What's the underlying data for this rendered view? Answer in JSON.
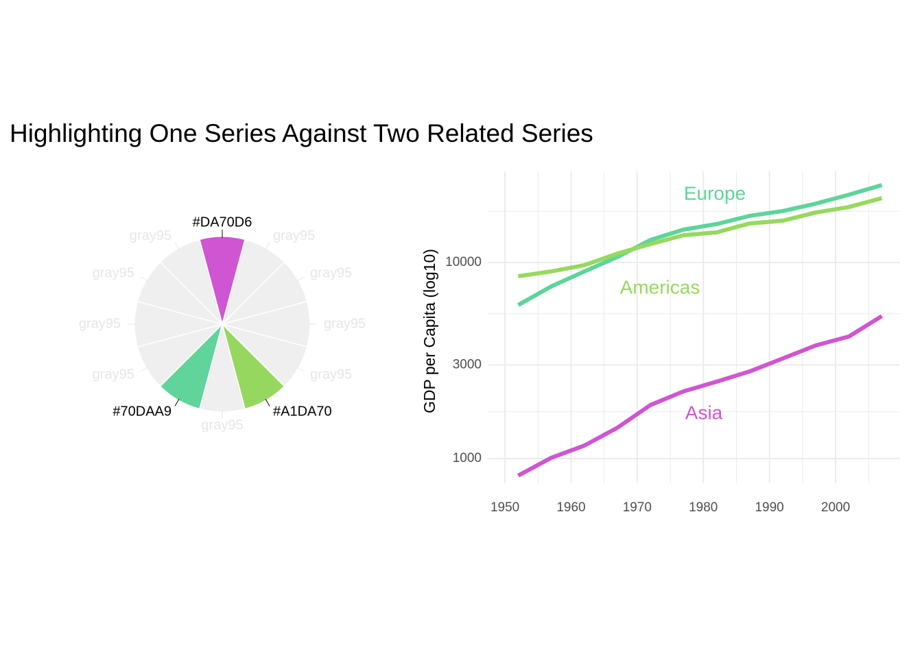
{
  "title": "Highlighting One Series Against Two Related Series",
  "chart_data": [
    {
      "type": "pie",
      "categories": [
        "#DA70D6",
        "gray95",
        "gray95",
        "gray95",
        "gray95",
        "#A1DA70",
        "gray95",
        "#70DAA9",
        "gray95",
        "gray95",
        "gray95",
        "gray95"
      ],
      "values": [
        1,
        1,
        1,
        1,
        1,
        1,
        1,
        1,
        1,
        1,
        1,
        1
      ],
      "colors": [
        "#CF55D2",
        "#EFEFEF",
        "#EFEFEF",
        "#EFEFEF",
        "#EFEFEF",
        "#96D85F",
        "#EFEFEF",
        "#60D49B",
        "#EFEFEF",
        "#EFEFEF",
        "#EFEFEF",
        "#EFEFEF"
      ],
      "label_colors": [
        "#000000",
        "#E6E6E6",
        "#E6E6E6",
        "#E6E6E6",
        "#E6E6E6",
        "#000000",
        "#E6E6E6",
        "#000000",
        "#E6E6E6",
        "#E6E6E6",
        "#E6E6E6",
        "#E6E6E6"
      ]
    },
    {
      "type": "line",
      "y_label": "GDP per Capita (log10)",
      "log_y": true,
      "grid": true,
      "x": [
        1952,
        1957,
        1962,
        1967,
        1972,
        1977,
        1982,
        1987,
        1992,
        1997,
        2002,
        2007
      ],
      "series": [
        {
          "name": "Europe",
          "color": "#5ED49A",
          "values": [
            6070,
            7550,
            9000,
            10670,
            13030,
            14720,
            15700,
            17300,
            18300,
            19960,
            22170,
            24830
          ]
        },
        {
          "name": "Americas",
          "color": "#96D95E",
          "values": [
            8510,
            9010,
            9690,
            11100,
            12410,
            13790,
            14250,
            15830,
            16340,
            17990,
            19190,
            21310
          ]
        },
        {
          "name": "Asia",
          "color": "#CF55D2",
          "values": [
            818,
            1008,
            1164,
            1435,
            1874,
            2201,
            2465,
            2781,
            3238,
            3773,
            4190,
            5330
          ]
        }
      ],
      "xlim": [
        1947.5,
        2009.75
      ],
      "xticks": [
        1950,
        1960,
        1970,
        1980,
        1990,
        2000
      ],
      "ylim": [
        748,
        29180
      ],
      "yticks": [
        1000,
        3000,
        10000
      ]
    }
  ]
}
